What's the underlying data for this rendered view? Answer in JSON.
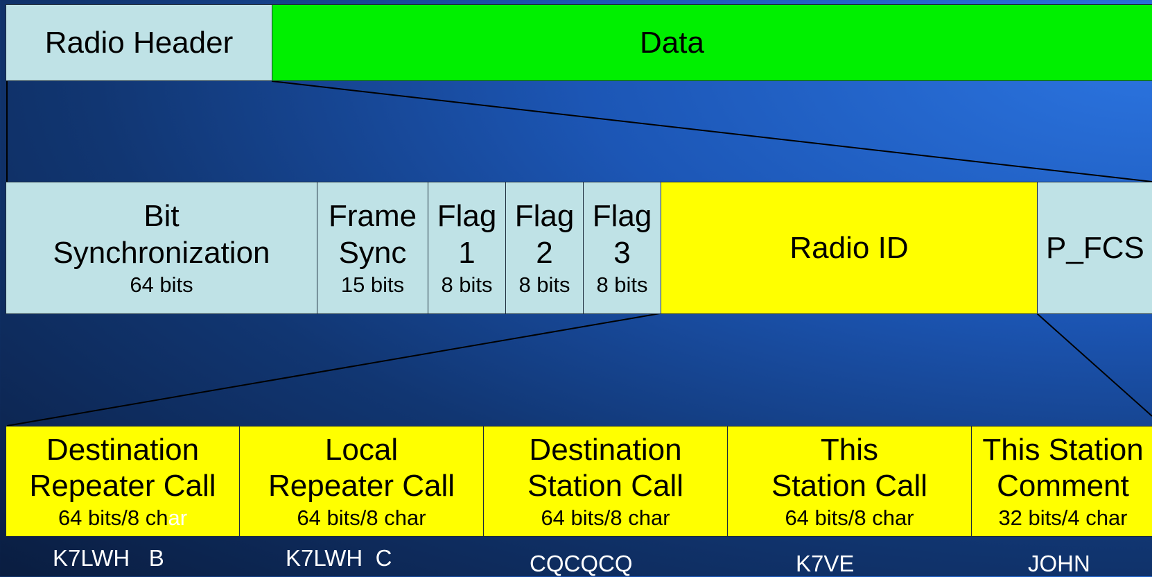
{
  "row1": {
    "radio_header": "Radio Header",
    "data": "Data"
  },
  "row2": {
    "fields": [
      {
        "name": "Bit\nSynchronization",
        "size": "64 bits"
      },
      {
        "name": "Frame\nSync",
        "size": "15 bits"
      },
      {
        "name": "Flag\n1",
        "size": "8 bits"
      },
      {
        "name": "Flag\n2",
        "size": "8 bits"
      },
      {
        "name": "Flag\n3",
        "size": "8 bits"
      }
    ],
    "radio_id": "Radio ID",
    "p_fcs": "P_FCS"
  },
  "row3": {
    "fields": [
      {
        "name": "Destination\nRepeater Call",
        "size_a": "64 bits/8 ch",
        "size_b": "ar"
      },
      {
        "name": "Local\nRepeater Call",
        "size_a": "64 bits/8 char",
        "size_b": ""
      },
      {
        "name": "Destination\nStation Call",
        "size_a": "64 bits/8 char",
        "size_b": ""
      },
      {
        "name": "This\nStation Call",
        "size_a": "64 bits/8 char",
        "size_b": ""
      },
      {
        "name": "This Station\nComment",
        "size_a": "32 bits/4 char",
        "size_b": ""
      }
    ]
  },
  "examples": [
    "K7LWH   B",
    "K7LWH  C",
    "CQCQCQ",
    "K7VE",
    "JOHN"
  ],
  "colors": {
    "light_blue": "#bfe2e6",
    "green": "#00f000",
    "yellow": "#ffff00"
  }
}
